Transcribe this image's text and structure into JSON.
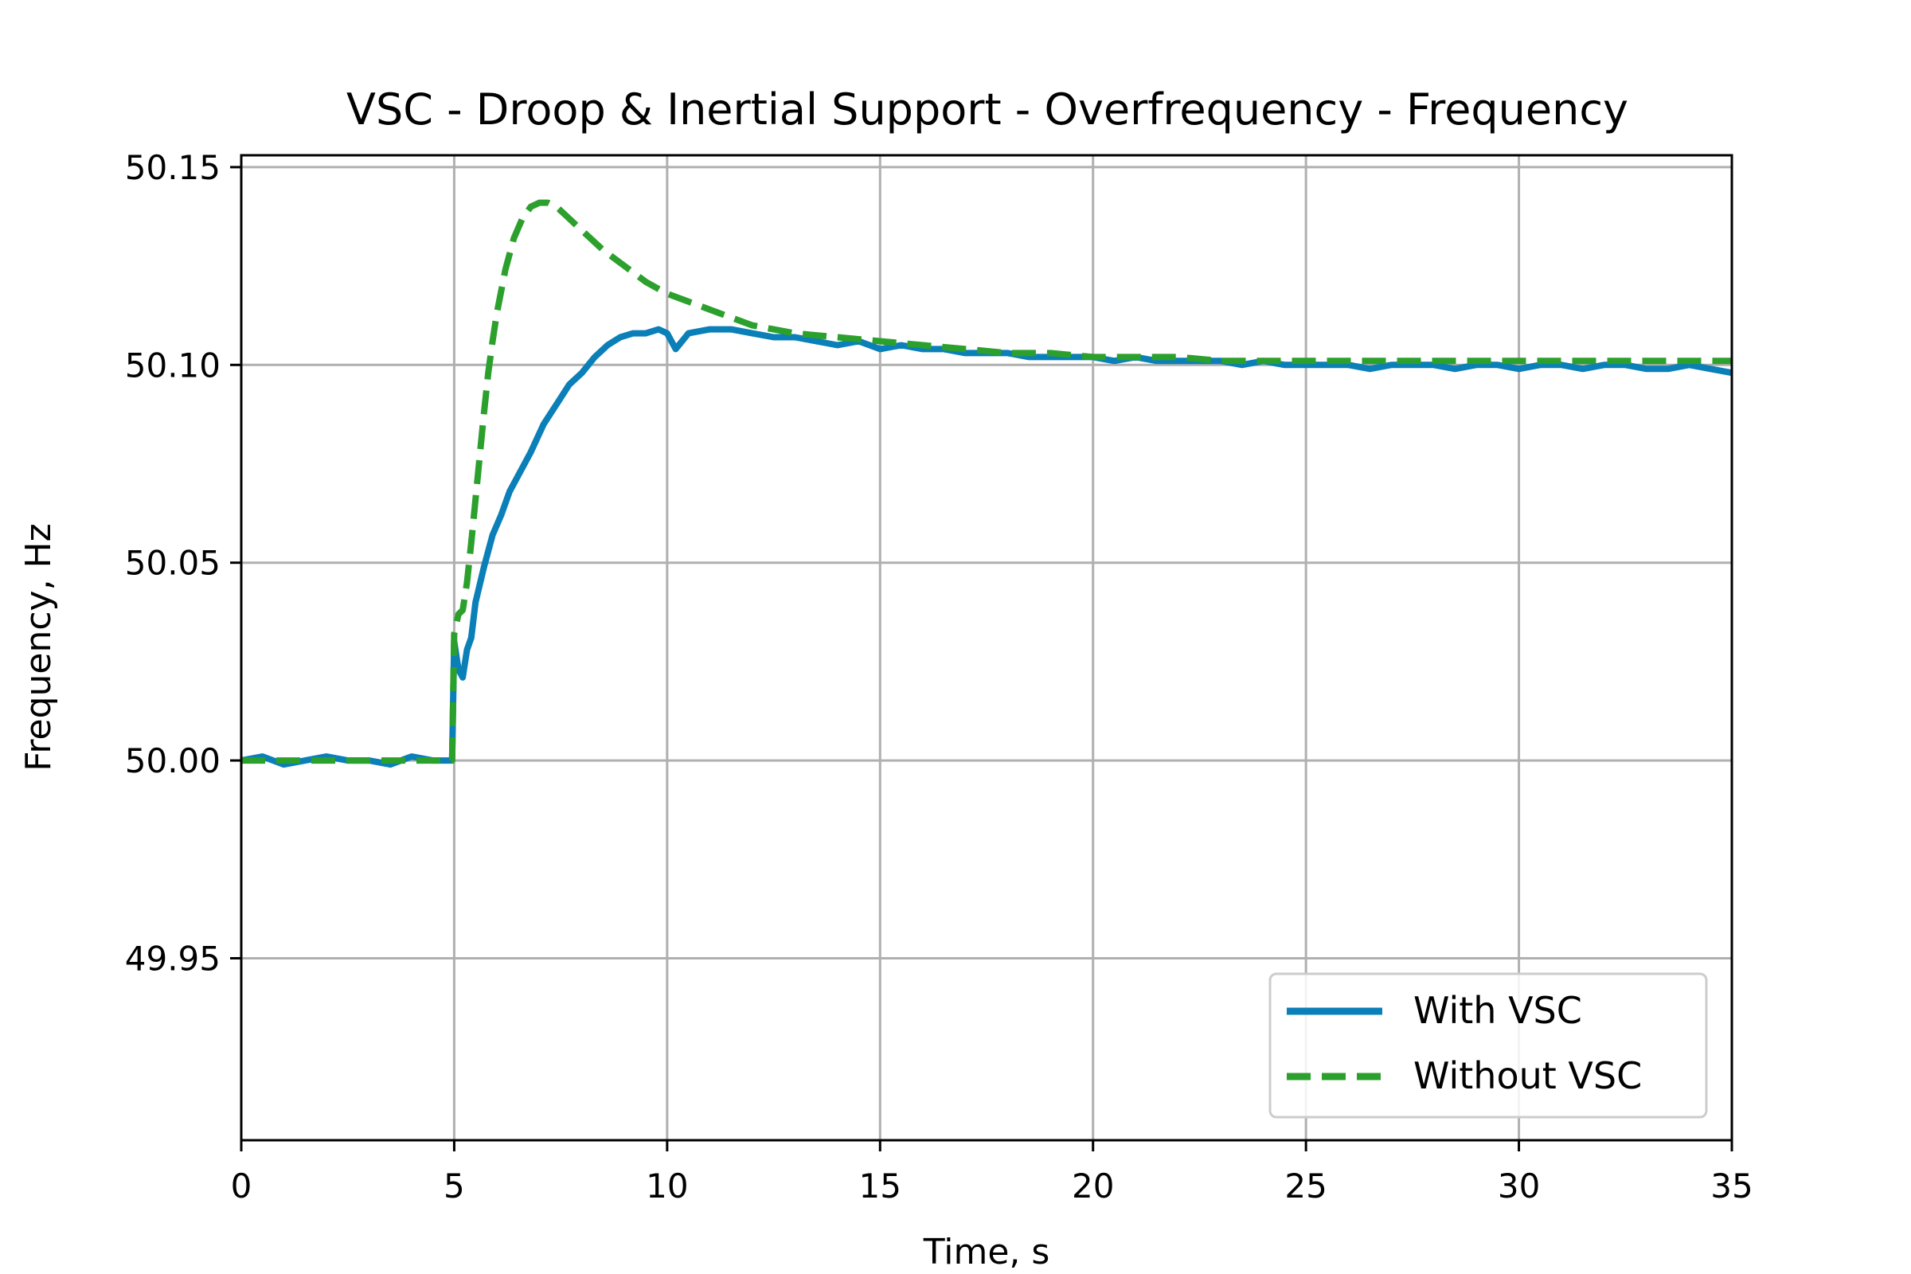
{
  "chart_data": {
    "type": "line",
    "title": "VSC - Droop & Inertial Support - Overfrequency - Frequency",
    "xlabel": "Time, s",
    "ylabel": "Frequency, Hz",
    "xlim": [
      0,
      35
    ],
    "ylim": [
      49.904,
      50.153
    ],
    "xticks": [
      0,
      5,
      10,
      15,
      20,
      25,
      30,
      35
    ],
    "xtick_labels": [
      "0",
      "5",
      "10",
      "15",
      "20",
      "25",
      "30",
      "35"
    ],
    "yticks": [
      49.95,
      50.0,
      50.05,
      50.1,
      50.15
    ],
    "ytick_labels": [
      "49.95",
      "50.00",
      "50.05",
      "50.10",
      "50.15"
    ],
    "grid": true,
    "legend_position": "lower-right",
    "series": [
      {
        "name": "With VSC",
        "style": "solid",
        "color": "#0a7fb8",
        "x": [
          0,
          0.5,
          1,
          1.5,
          2,
          2.5,
          3,
          3.5,
          4,
          4.5,
          4.95,
          5,
          5.1,
          5.2,
          5.3,
          5.4,
          5.5,
          5.7,
          5.9,
          6.1,
          6.3,
          6.5,
          6.8,
          7.1,
          7.4,
          7.7,
          8,
          8.3,
          8.6,
          8.9,
          9.2,
          9.5,
          9.8,
          10,
          10.2,
          10.5,
          11,
          11.5,
          12,
          12.5,
          13,
          13.5,
          14,
          14.5,
          15,
          15.5,
          16,
          16.5,
          17,
          17.5,
          18,
          18.5,
          19,
          19.5,
          20,
          20.5,
          21,
          21.5,
          22,
          22.5,
          23,
          23.5,
          24,
          24.5,
          25,
          25.5,
          26,
          26.5,
          27,
          27.5,
          28,
          28.5,
          29,
          29.5,
          30,
          30.5,
          31,
          31.5,
          32,
          32.5,
          33,
          33.5,
          34,
          34.5,
          35
        ],
        "y": [
          50.0,
          50.001,
          49.999,
          50.0,
          50.001,
          50.0,
          50.0,
          49.999,
          50.001,
          50.0,
          50.0,
          50.03,
          50.023,
          50.021,
          50.028,
          50.031,
          50.04,
          50.049,
          50.057,
          50.062,
          50.068,
          50.072,
          50.078,
          50.085,
          50.09,
          50.095,
          50.098,
          50.102,
          50.105,
          50.107,
          50.108,
          50.108,
          50.109,
          50.108,
          50.104,
          50.108,
          50.109,
          50.109,
          50.108,
          50.107,
          50.107,
          50.106,
          50.105,
          50.106,
          50.104,
          50.105,
          50.104,
          50.104,
          50.103,
          50.103,
          50.103,
          50.102,
          50.102,
          50.102,
          50.102,
          50.101,
          50.102,
          50.101,
          50.101,
          50.101,
          50.101,
          50.1,
          50.101,
          50.1,
          50.1,
          50.1,
          50.1,
          50.099,
          50.1,
          50.1,
          50.1,
          50.099,
          50.1,
          50.1,
          50.099,
          50.1,
          50.1,
          50.099,
          50.1,
          50.1,
          50.099,
          50.099,
          50.1,
          50.099,
          50.098
        ]
      },
      {
        "name": "Without VSC",
        "style": "dashed",
        "color": "#2ca02c",
        "x": [
          0,
          1,
          2,
          3,
          4,
          4.95,
          5,
          5.1,
          5.2,
          5.3,
          5.4,
          5.5,
          5.6,
          5.7,
          5.8,
          5.9,
          6.0,
          6.2,
          6.4,
          6.6,
          6.8,
          7.0,
          7.2,
          7.4,
          7.6,
          7.8,
          8.0,
          8.5,
          9,
          9.5,
          10,
          10.5,
          11,
          11.5,
          12,
          12.5,
          13,
          14,
          15,
          16,
          17,
          18,
          19,
          20,
          21,
          22,
          23,
          24,
          25,
          26,
          27,
          28,
          29,
          30,
          31,
          32,
          33,
          34,
          35
        ],
        "y": [
          50.0,
          50.0,
          50.0,
          50.0,
          50.0,
          50.0,
          50.032,
          50.037,
          50.038,
          50.045,
          50.055,
          50.066,
          50.077,
          50.088,
          50.098,
          50.106,
          50.113,
          50.124,
          50.132,
          50.137,
          50.14,
          50.141,
          50.141,
          50.14,
          50.138,
          50.136,
          50.134,
          50.129,
          50.125,
          50.121,
          50.118,
          50.116,
          50.114,
          50.112,
          50.11,
          50.109,
          50.108,
          50.107,
          50.106,
          50.105,
          50.104,
          50.103,
          50.103,
          50.102,
          50.102,
          50.102,
          50.101,
          50.101,
          50.101,
          50.101,
          50.101,
          50.101,
          50.101,
          50.101,
          50.101,
          50.101,
          50.101,
          50.101,
          50.101
        ]
      }
    ]
  }
}
